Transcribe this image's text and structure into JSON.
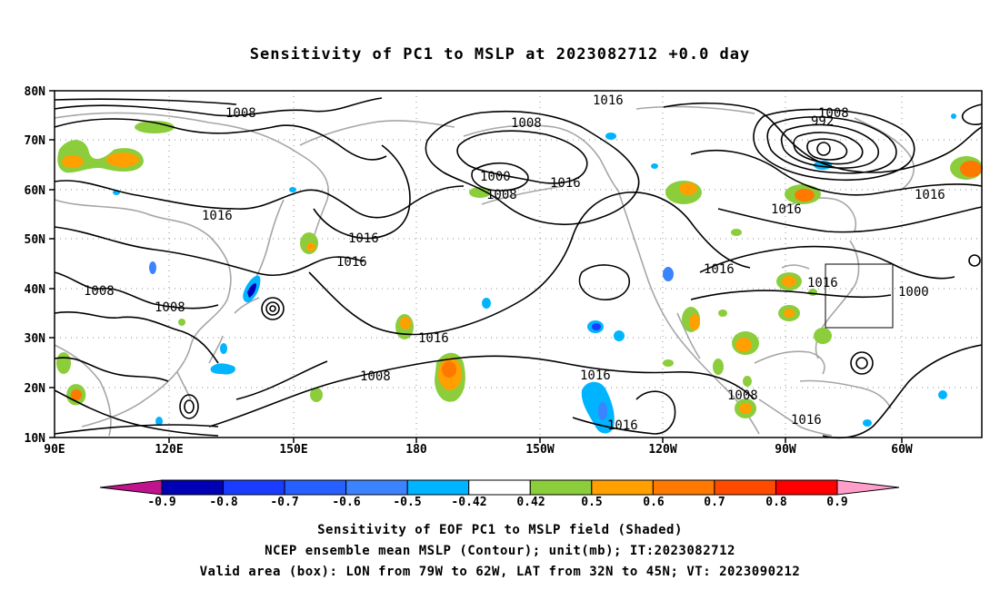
{
  "title": "Sensitivity of PC1 to MSLP at 2023082712 +0.0 day",
  "lat_labels": [
    "80N",
    "70N",
    "60N",
    "50N",
    "40N",
    "30N",
    "20N",
    "10N"
  ],
  "lon_labels": [
    "90E",
    "120E",
    "150E",
    "180",
    "150W",
    "120W",
    "90W",
    "60W"
  ],
  "contour_labels": [
    "1008",
    "1016",
    "1008",
    "1016",
    "1000",
    "992",
    "1008",
    "1016",
    "1008",
    "1016",
    "1016",
    "1008",
    "1016",
    "1008",
    "1016",
    "1016",
    "1016",
    "1008",
    "1016",
    "1016",
    "1000",
    "1008",
    "1016"
  ],
  "colorbar": {
    "labels": [
      "-0.9",
      "-0.8",
      "-0.7",
      "-0.6",
      "-0.5",
      "-0.42",
      "0.42",
      "0.5",
      "0.6",
      "0.7",
      "0.8",
      "0.9"
    ],
    "colors": [
      "#0000b4",
      "#1a3cff",
      "#2860ff",
      "#3b83ff",
      "#00b4ff",
      "#ffffff",
      "#8ccd3c",
      "#ffa000",
      "#ff7800",
      "#ff4b00",
      "#ff0000"
    ],
    "low_end_color": "#c0148c",
    "high_end_color": "#ff9ec8"
  },
  "caption": {
    "line1": "Sensitivity of EOF PC1 to MSLP field (Shaded)",
    "line2": "NCEP ensemble mean MSLP (Contour); unit(mb); IT:2023082712",
    "line3": "Valid area (box): LON from 79W to 62W, LAT from 32N to 45N; VT: 2023090212"
  }
}
